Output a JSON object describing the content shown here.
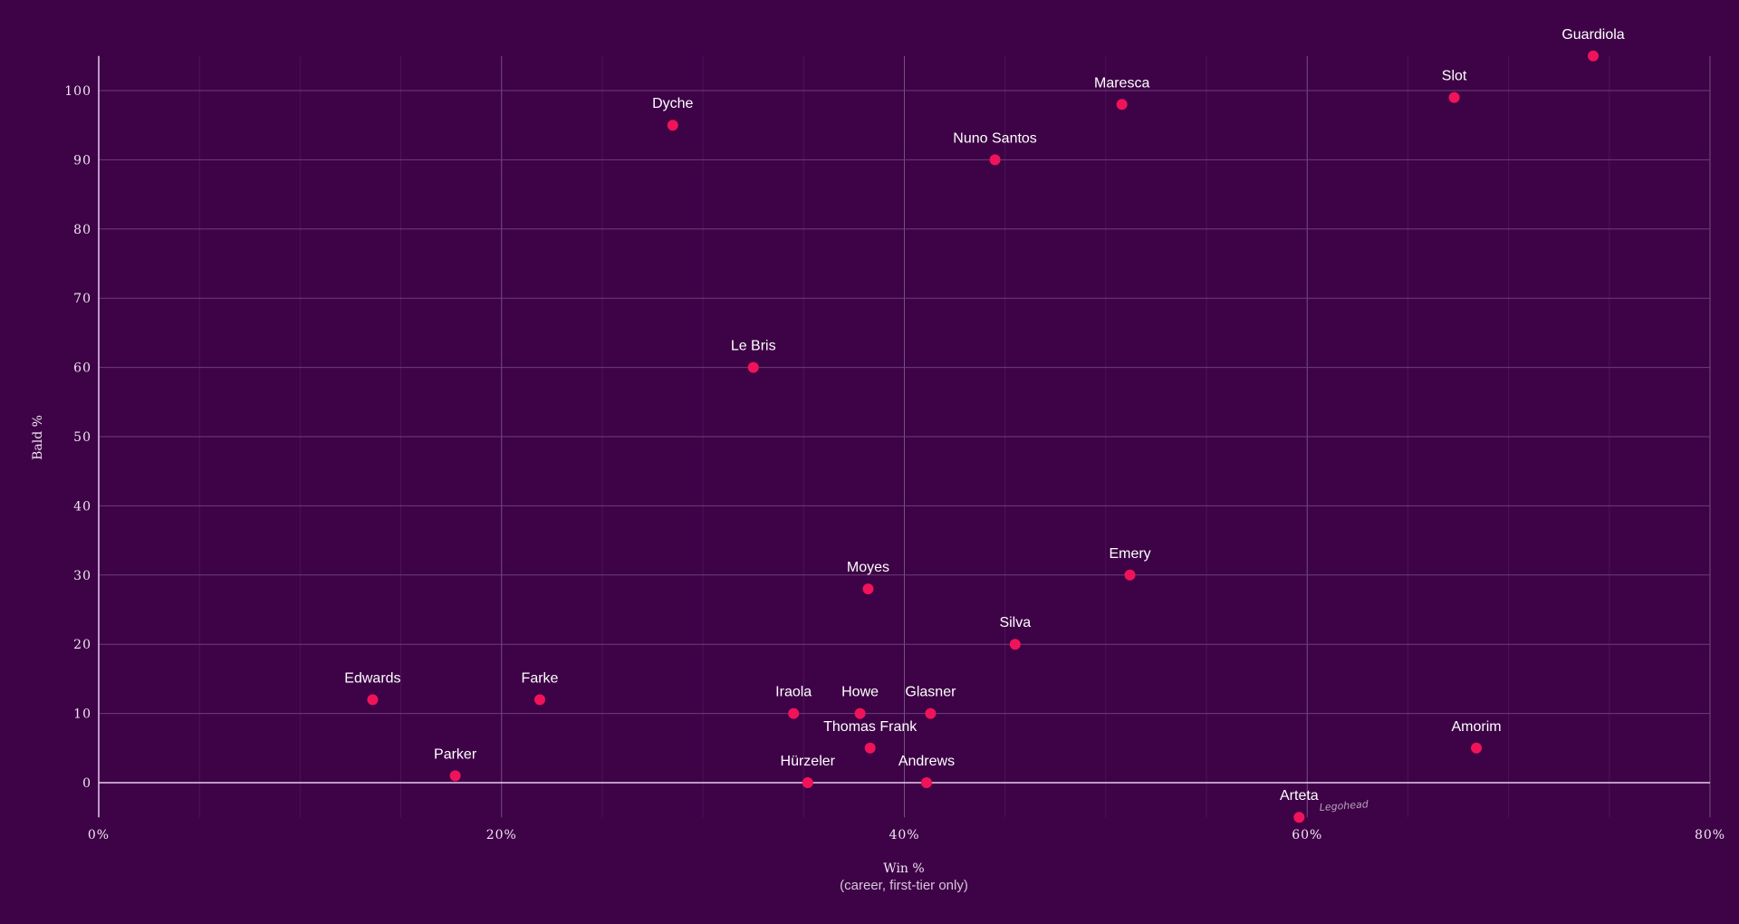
{
  "chart_data": {
    "type": "scatter",
    "xlabel": "Win %",
    "xlabel_sub": "(career, first-tier only)",
    "ylabel": "Bald %",
    "xlim": [
      0,
      80
    ],
    "ylim": [
      -5,
      105
    ],
    "x_ticks": [
      0,
      20,
      40,
      60,
      80
    ],
    "x_tick_labels": [
      "0%",
      "20%",
      "40%",
      "60%",
      "80%"
    ],
    "y_ticks": [
      0,
      10,
      20,
      30,
      40,
      50,
      60,
      70,
      80,
      90,
      100
    ],
    "y_tick_labels": [
      "0",
      "10",
      "20",
      "30",
      "40",
      "50",
      "60",
      "70",
      "80",
      "90",
      "100"
    ],
    "grid": true,
    "point_color": "#f0135a",
    "points": [
      {
        "label": "Guardiola",
        "x": 74.2,
        "y": 105
      },
      {
        "label": "Slot",
        "x": 67.3,
        "y": 99
      },
      {
        "label": "Maresca",
        "x": 50.8,
        "y": 98
      },
      {
        "label": "Nuno Santos",
        "x": 44.5,
        "y": 90
      },
      {
        "label": "Dyche",
        "x": 28.5,
        "y": 95
      },
      {
        "label": "Le Bris",
        "x": 32.5,
        "y": 60
      },
      {
        "label": "Moyes",
        "x": 38.2,
        "y": 28
      },
      {
        "label": "Emery",
        "x": 51.2,
        "y": 30
      },
      {
        "label": "Silva",
        "x": 45.5,
        "y": 20
      },
      {
        "label": "Edwards",
        "x": 13.6,
        "y": 12
      },
      {
        "label": "Farke",
        "x": 21.9,
        "y": 12
      },
      {
        "label": "Iraola",
        "x": 34.5,
        "y": 10
      },
      {
        "label": "Howe",
        "x": 37.8,
        "y": 10
      },
      {
        "label": "Glasner",
        "x": 41.3,
        "y": 10
      },
      {
        "label": "Thomas Frank",
        "x": 38.3,
        "y": 5
      },
      {
        "label": "Hürzeler",
        "x": 35.2,
        "y": 0
      },
      {
        "label": "Andrews",
        "x": 41.1,
        "y": 0
      },
      {
        "label": "Parker",
        "x": 17.7,
        "y": 1
      },
      {
        "label": "Amorim",
        "x": 68.4,
        "y": 5
      },
      {
        "label": "Arteta",
        "x": 59.6,
        "y": -5
      }
    ],
    "annotations": [
      {
        "text": "Legohead",
        "near": "Arteta"
      }
    ]
  }
}
